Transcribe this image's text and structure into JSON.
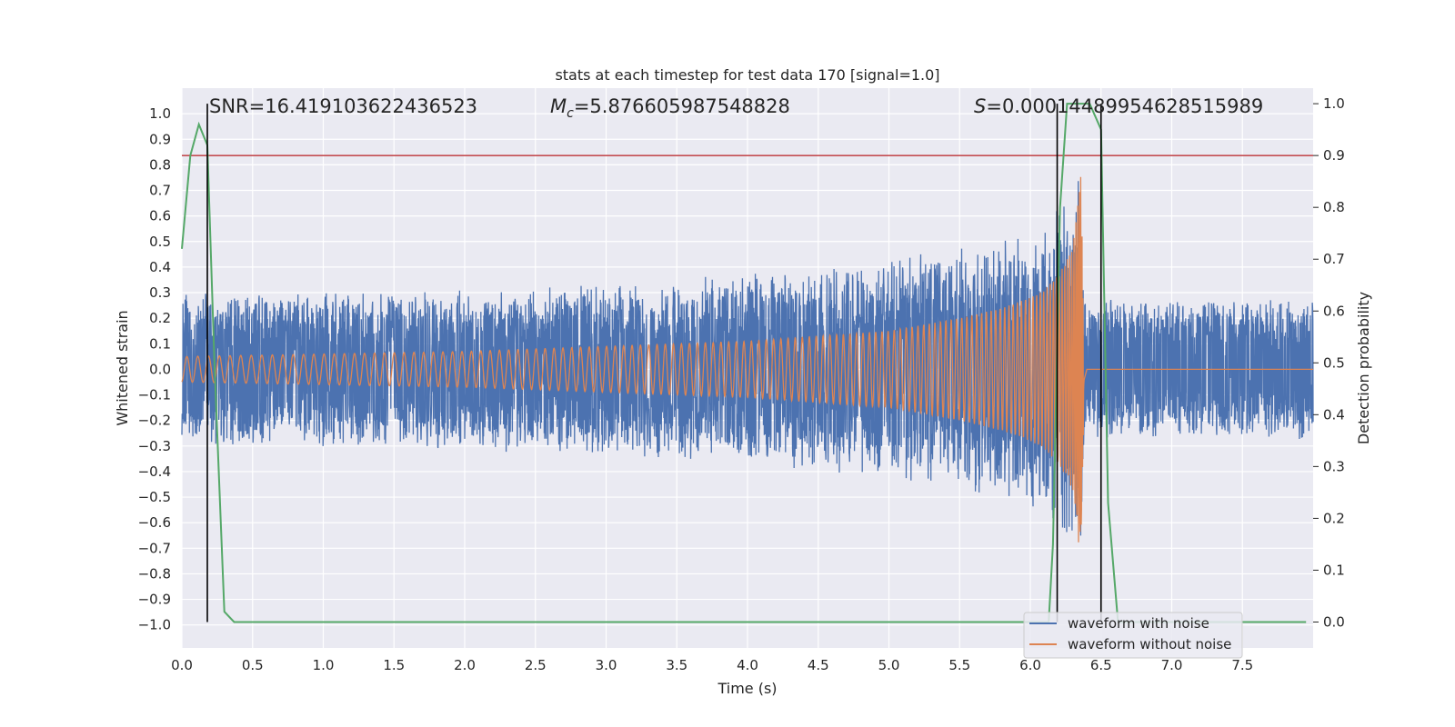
{
  "chart_data": {
    "type": "line",
    "title": "stats at each timestep for test data 170 [signal=1.0]",
    "xlabel": "Time (s)",
    "ylabel": "Whitened strain",
    "y2label": "Detection probability",
    "xlim": [
      0.0,
      8.0
    ],
    "ylim": [
      -1.09,
      1.1
    ],
    "y2lim": [
      -0.05,
      1.03
    ],
    "xticks": [
      "0.0",
      "0.5",
      "1.0",
      "1.5",
      "2.0",
      "2.5",
      "3.0",
      "3.5",
      "4.0",
      "4.5",
      "5.0",
      "5.5",
      "6.0",
      "6.5",
      "7.0",
      "7.5"
    ],
    "yticks": [
      "1.0",
      "0.9",
      "0.8",
      "0.7",
      "0.6",
      "0.5",
      "0.4",
      "0.3",
      "0.2",
      "0.1",
      "0.0",
      "−0.1",
      "−0.2",
      "−0.3",
      "−0.4",
      "−0.5",
      "−0.6",
      "−0.7",
      "−0.8",
      "−0.9",
      "−1.0"
    ],
    "y2ticks": [
      "1.0",
      "0.9",
      "0.8",
      "0.7",
      "0.6",
      "0.5",
      "0.4",
      "0.3",
      "0.2",
      "0.1",
      "0.0"
    ],
    "grid": true,
    "legend_position": "lower-right",
    "annotations": {
      "snr": "SNR=16.419103622436523",
      "mc_symbol": "M",
      "mc_sub": "c",
      "mc_value": "=5.876605987548828",
      "s_symbol": "S",
      "s_value": "=0.00014489954628515989"
    },
    "threshold": 0.9,
    "threshold_color": "#c44e52",
    "vertical_lines_x": [
      0.18,
      6.19,
      6.5
    ],
    "series": [
      {
        "name": "waveform with noise",
        "color": "#4c72b0",
        "envelope_x": [
          0.0,
          0.5,
          1.0,
          1.5,
          2.0,
          2.5,
          3.0,
          3.5,
          4.0,
          4.5,
          5.0,
          5.5,
          5.8,
          6.0,
          6.1,
          6.2,
          6.3,
          6.35,
          6.38,
          6.4,
          7.0,
          8.0
        ],
        "envelope_amp": [
          0.3,
          0.31,
          0.31,
          0.31,
          0.32,
          0.33,
          0.34,
          0.36,
          0.38,
          0.4,
          0.43,
          0.48,
          0.52,
          0.56,
          0.6,
          0.66,
          0.72,
          0.82,
          0.3,
          0.28,
          0.28,
          0.28
        ]
      },
      {
        "name": "waveform without noise",
        "color": "#dd8452",
        "envelope_x": [
          0.0,
          1.0,
          2.0,
          3.0,
          4.0,
          4.5,
          5.0,
          5.5,
          5.8,
          6.0,
          6.1,
          6.2,
          6.3,
          6.36,
          6.38,
          6.4,
          8.0
        ],
        "envelope_amp": [
          0.05,
          0.06,
          0.07,
          0.09,
          0.11,
          0.13,
          0.15,
          0.2,
          0.24,
          0.28,
          0.31,
          0.37,
          0.47,
          0.78,
          0.1,
          0.0,
          0.0
        ],
        "chirp": {
          "tc": 6.38,
          "f0": 13.0
        }
      },
      {
        "name": "detection probability",
        "color": "#55a868",
        "axis": "right",
        "x": [
          0.0,
          0.06,
          0.12,
          0.18,
          0.23,
          0.3,
          0.37,
          0.5,
          1.0,
          2.0,
          3.0,
          4.0,
          5.0,
          5.5,
          6.0,
          6.13,
          6.16,
          6.21,
          6.26,
          6.3,
          6.36,
          6.42,
          6.5,
          6.55,
          6.62,
          7.0,
          7.5,
          7.95
        ],
        "y": [
          0.72,
          0.9,
          0.96,
          0.92,
          0.5,
          0.02,
          0.0,
          0.0,
          0.0,
          0.0,
          0.0,
          0.0,
          0.0,
          0.0,
          0.0,
          0.0,
          0.15,
          0.8,
          1.0,
          1.0,
          1.0,
          1.0,
          0.95,
          0.23,
          0.0,
          0.0,
          0.0,
          0.0
        ]
      }
    ]
  }
}
